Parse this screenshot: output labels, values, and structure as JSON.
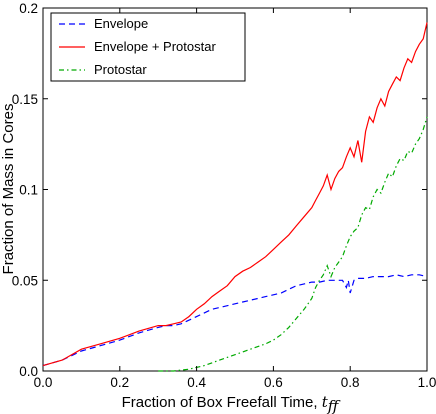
{
  "chart_data": {
    "type": "line",
    "xlabel": "Fraction of Box Freefall Time, ",
    "xlabel_math": "t",
    "xlabel_sub": "ff",
    "ylabel": "Fraction of Mass in Cores",
    "xlim": [
      0.0,
      1.0
    ],
    "ylim": [
      0.0,
      0.2
    ],
    "xticks": [
      0.0,
      0.2,
      0.4,
      0.6,
      0.8,
      1.0
    ],
    "xtick_labels": [
      "0.0",
      "0.2",
      "0.4",
      "0.6",
      "0.8",
      "1.0"
    ],
    "yticks": [
      0.0,
      0.05,
      0.1,
      0.15,
      0.2
    ],
    "ytick_labels": [
      "0.0",
      "0.05",
      "0.1",
      "0.15",
      "0.2"
    ],
    "grid": false,
    "legend_position": "top-left",
    "series": [
      {
        "name": "Envelope",
        "color": "#0000ff",
        "style": "dashed",
        "x": [
          0.0,
          0.05,
          0.1,
          0.15,
          0.2,
          0.25,
          0.3,
          0.32,
          0.34,
          0.36,
          0.38,
          0.4,
          0.42,
          0.44,
          0.46,
          0.48,
          0.5,
          0.52,
          0.54,
          0.56,
          0.58,
          0.6,
          0.62,
          0.64,
          0.66,
          0.68,
          0.7,
          0.72,
          0.74,
          0.76,
          0.78,
          0.79,
          0.795,
          0.8,
          0.81,
          0.82,
          0.84,
          0.86,
          0.88,
          0.9,
          0.92,
          0.94,
          0.96,
          0.98,
          1.0
        ],
        "y": [
          0.003,
          0.006,
          0.011,
          0.014,
          0.017,
          0.021,
          0.024,
          0.025,
          0.025,
          0.026,
          0.028,
          0.03,
          0.032,
          0.034,
          0.035,
          0.036,
          0.037,
          0.038,
          0.039,
          0.04,
          0.041,
          0.042,
          0.043,
          0.045,
          0.047,
          0.048,
          0.049,
          0.049,
          0.05,
          0.05,
          0.05,
          0.046,
          0.05,
          0.043,
          0.05,
          0.051,
          0.051,
          0.052,
          0.052,
          0.052,
          0.053,
          0.052,
          0.053,
          0.053,
          0.052
        ]
      },
      {
        "name": "Envelope + Protostar",
        "color": "#ff0000",
        "style": "solid",
        "x": [
          0.0,
          0.05,
          0.1,
          0.15,
          0.2,
          0.25,
          0.3,
          0.32,
          0.34,
          0.36,
          0.38,
          0.4,
          0.42,
          0.44,
          0.46,
          0.48,
          0.5,
          0.52,
          0.54,
          0.56,
          0.58,
          0.6,
          0.62,
          0.64,
          0.66,
          0.68,
          0.7,
          0.71,
          0.72,
          0.73,
          0.74,
          0.75,
          0.76,
          0.77,
          0.78,
          0.79,
          0.8,
          0.81,
          0.82,
          0.83,
          0.84,
          0.85,
          0.86,
          0.87,
          0.88,
          0.89,
          0.9,
          0.91,
          0.92,
          0.93,
          0.94,
          0.95,
          0.96,
          0.97,
          0.98,
          0.99,
          1.0
        ],
        "y": [
          0.003,
          0.006,
          0.012,
          0.015,
          0.018,
          0.022,
          0.025,
          0.025,
          0.026,
          0.027,
          0.03,
          0.034,
          0.037,
          0.041,
          0.044,
          0.047,
          0.052,
          0.055,
          0.057,
          0.06,
          0.063,
          0.067,
          0.071,
          0.075,
          0.08,
          0.085,
          0.09,
          0.094,
          0.098,
          0.102,
          0.108,
          0.1,
          0.106,
          0.11,
          0.112,
          0.118,
          0.123,
          0.118,
          0.127,
          0.115,
          0.132,
          0.14,
          0.137,
          0.145,
          0.15,
          0.146,
          0.154,
          0.158,
          0.162,
          0.16,
          0.167,
          0.172,
          0.17,
          0.176,
          0.18,
          0.183,
          0.192
        ]
      },
      {
        "name": "Protostar",
        "color": "#00aa00",
        "style": "dashdot",
        "x": [
          0.3,
          0.34,
          0.38,
          0.42,
          0.46,
          0.5,
          0.54,
          0.58,
          0.6,
          0.62,
          0.64,
          0.66,
          0.68,
          0.7,
          0.71,
          0.72,
          0.73,
          0.74,
          0.75,
          0.76,
          0.77,
          0.78,
          0.79,
          0.8,
          0.81,
          0.82,
          0.83,
          0.84,
          0.85,
          0.86,
          0.87,
          0.88,
          0.89,
          0.9,
          0.91,
          0.92,
          0.93,
          0.94,
          0.95,
          0.96,
          0.97,
          0.98,
          0.99,
          1.0
        ],
        "y": [
          0.0,
          0.0,
          0.001,
          0.003,
          0.006,
          0.009,
          0.012,
          0.015,
          0.017,
          0.02,
          0.024,
          0.029,
          0.034,
          0.04,
          0.046,
          0.05,
          0.053,
          0.058,
          0.052,
          0.057,
          0.06,
          0.063,
          0.069,
          0.074,
          0.077,
          0.079,
          0.086,
          0.09,
          0.089,
          0.096,
          0.1,
          0.098,
          0.104,
          0.109,
          0.107,
          0.113,
          0.117,
          0.116,
          0.121,
          0.12,
          0.125,
          0.128,
          0.133,
          0.14
        ]
      }
    ]
  }
}
